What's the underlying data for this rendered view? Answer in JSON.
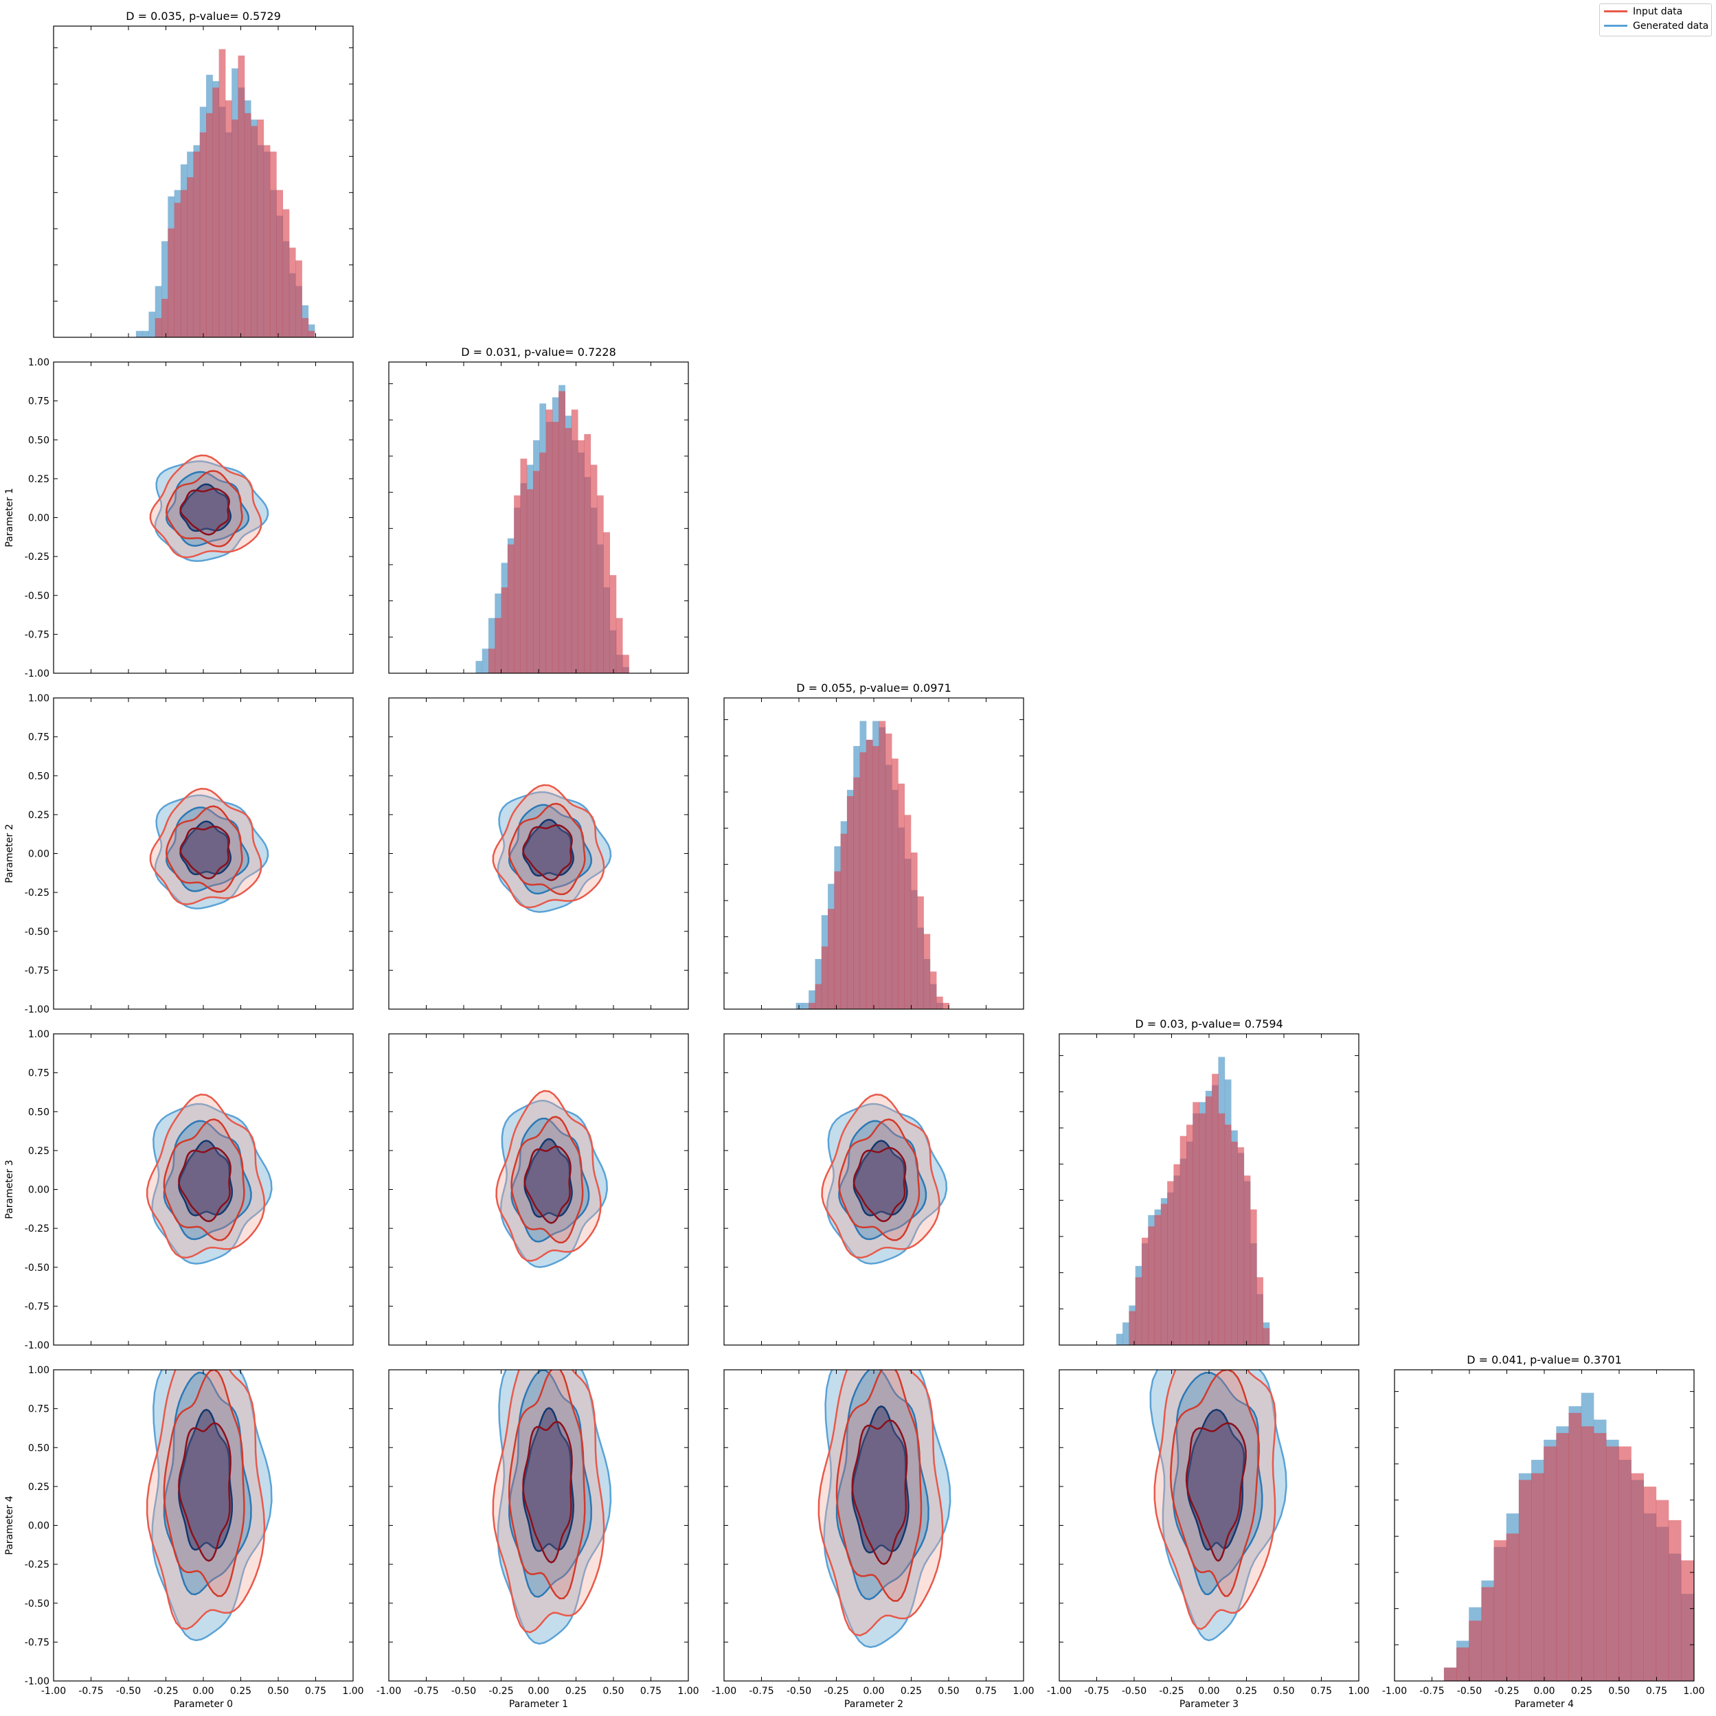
{
  "legend": {
    "items": [
      {
        "label": "Input data",
        "color": "#e8594a"
      },
      {
        "label": "Generated data",
        "color": "#5aa2d6"
      }
    ],
    "position": "upper right of figure"
  },
  "chart_data": {
    "type": "corner-plot",
    "parameters": [
      "Parameter 0",
      "Parameter 1",
      "Parameter 2",
      "Parameter 3",
      "Parameter 4"
    ],
    "axis_range": [
      -1.0,
      1.0
    ],
    "tick_labels": [
      "-1.00",
      "-0.75",
      "-0.50",
      "-0.25",
      "0.00",
      "0.25",
      "0.50",
      "0.75",
      "1.00"
    ],
    "grid": false,
    "series_colors": {
      "Input data": "#d9454f",
      "Generated data": "#5b9fcc",
      "overlap": "#84839f"
    },
    "diagonal": [
      {
        "parameter": "Parameter 0",
        "title": "D = 0.035, p-value= 0.5729",
        "bin_width": 0.0426,
        "input_density": [
          0,
          0,
          0,
          0.3,
          0.6,
          1.7,
          2.1,
          2.3,
          2.5,
          2.9,
          3.2,
          3.5,
          3.9,
          4.5,
          3.7,
          3.4,
          4.4,
          3.5,
          3.3,
          3.4,
          3.0,
          2.9,
          2.3,
          2.0,
          1.4,
          1.2,
          0.3,
          0.1
        ],
        "generated_density": [
          0.1,
          0.1,
          0.4,
          0.8,
          1.5,
          2.2,
          2.3,
          2.7,
          2.9,
          3.0,
          3.6,
          4.1,
          4.0,
          3.6,
          3.2,
          4.2,
          3.9,
          3.7,
          3.4,
          3.0,
          2.9,
          2.3,
          1.9,
          1.5,
          1.0,
          0.8,
          0.5,
          0.2
        ],
        "x_start": -0.45
      },
      {
        "parameter": "Parameter 1",
        "title": "D = 0.031, p-value= 0.7228",
        "bin_width": 0.0426,
        "input_density": [
          0,
          0,
          0.4,
          0.9,
          1.4,
          2.1,
          2.9,
          3.5,
          3.0,
          3.3,
          3.6,
          4.3,
          4.1,
          4.6,
          4.0,
          4.3,
          3.8,
          3.9,
          3.4,
          2.9,
          2.3,
          1.6,
          0.9,
          0.3
        ],
        "generated_density": [
          0.2,
          0.4,
          0.9,
          1.3,
          1.8,
          2.2,
          2.7,
          3.1,
          3.4,
          3.8,
          4.4,
          4.1,
          4.5,
          4.7,
          4.2,
          3.8,
          3.6,
          3.2,
          2.7,
          2.1,
          1.4,
          0.7,
          0.3,
          0.1
        ],
        "x_start": -0.42
      },
      {
        "parameter": "Parameter 2",
        "title": "D = 0.055, p-value= 0.0971",
        "bin_width": 0.0426,
        "input_density": [
          0,
          0,
          0.1,
          0.4,
          1.0,
          1.6,
          2.2,
          2.8,
          3.4,
          3.7,
          4.1,
          4.3,
          4.2,
          4.6,
          4.4,
          4.0,
          3.6,
          3.1,
          2.5,
          1.8,
          1.2,
          0.6,
          0.2,
          0.1
        ],
        "generated_density": [
          0.1,
          0.1,
          0.3,
          0.8,
          1.5,
          2.0,
          2.6,
          3.0,
          3.5,
          4.2,
          4.6,
          4.3,
          4.6,
          4.5,
          3.9,
          3.5,
          2.9,
          2.4,
          1.9,
          1.3,
          0.8,
          0.4,
          0.1,
          0
        ],
        "x_start": -0.52
      },
      {
        "parameter": "Parameter 3",
        "title": "D = 0.03, p-value= 0.7594",
        "bin_width": 0.0426,
        "input_density": [
          0,
          0,
          0.6,
          1.2,
          1.9,
          2.1,
          2.3,
          2.5,
          2.9,
          3.2,
          3.7,
          3.9,
          4.3,
          4.1,
          4.4,
          4.8,
          4.1,
          3.9,
          3.6,
          3.5,
          3.0,
          2.4,
          1.2,
          0.3
        ],
        "generated_density": [
          0.2,
          0.4,
          0.7,
          1.4,
          1.8,
          2.3,
          2.4,
          2.6,
          2.7,
          3.0,
          3.3,
          3.6,
          4.1,
          4.3,
          4.5,
          4.6,
          5.1,
          4.7,
          3.8,
          3.4,
          2.9,
          1.8,
          0.9,
          0.4
        ],
        "x_start": -0.62
      },
      {
        "parameter": "Parameter 4",
        "title": "D = 0.041, p-value= 0.3701",
        "bin_width": 0.0833,
        "input_density": [
          0.2,
          0.5,
          0.9,
          1.4,
          2.1,
          2.2,
          3.0,
          3.1,
          3.5,
          3.7,
          4.0,
          3.8,
          3.7,
          3.5,
          3.5,
          3.1,
          2.9,
          2.7,
          2.4,
          1.8
        ],
        "generated_density": [
          0.2,
          0.6,
          1.1,
          1.5,
          2.0,
          2.5,
          3.1,
          3.3,
          3.6,
          3.8,
          4.1,
          4.3,
          3.9,
          3.6,
          3.3,
          3.0,
          2.5,
          2.3,
          1.9,
          1.3
        ],
        "x_start": -0.67
      }
    ],
    "contour_panels": [
      {
        "x": "Parameter 0",
        "y": "Parameter 1",
        "cx": 0.02,
        "cy": 0.05,
        "sx": 0.17,
        "sy": 0.15,
        "shape": "blob"
      },
      {
        "x": "Parameter 0",
        "y": "Parameter 2",
        "cx": 0.02,
        "cy": 0.02,
        "sx": 0.17,
        "sy": 0.17,
        "shape": "blob"
      },
      {
        "x": "Parameter 1",
        "y": "Parameter 2",
        "cx": 0.07,
        "cy": 0.02,
        "sx": 0.17,
        "sy": 0.18,
        "shape": "blob"
      },
      {
        "x": "Parameter 0",
        "y": "Parameter 3",
        "cx": 0.02,
        "cy": 0.05,
        "sx": 0.18,
        "sy": 0.24,
        "shape": "blob"
      },
      {
        "x": "Parameter 1",
        "y": "Parameter 3",
        "cx": 0.07,
        "cy": 0.05,
        "sx": 0.16,
        "sy": 0.25,
        "shape": "blob"
      },
      {
        "x": "Parameter 2",
        "y": "Parameter 3",
        "cx": 0.05,
        "cy": 0.05,
        "sx": 0.18,
        "sy": 0.24,
        "shape": "blob"
      },
      {
        "x": "Parameter 0",
        "y": "Parameter 4",
        "cx": 0.02,
        "cy": 0.25,
        "sx": 0.18,
        "sy": 0.45,
        "shape": "blob"
      },
      {
        "x": "Parameter 1",
        "y": "Parameter 4",
        "cx": 0.07,
        "cy": 0.25,
        "sx": 0.17,
        "sy": 0.46,
        "shape": "blob"
      },
      {
        "x": "Parameter 2",
        "y": "Parameter 4",
        "cx": 0.05,
        "cy": 0.25,
        "sx": 0.19,
        "sy": 0.47,
        "shape": "blob"
      },
      {
        "x": "Parameter 3",
        "y": "Parameter 4",
        "cx": 0.05,
        "cy": 0.25,
        "sx": 0.25,
        "sy": 0.45,
        "shape": "v"
      }
    ]
  }
}
